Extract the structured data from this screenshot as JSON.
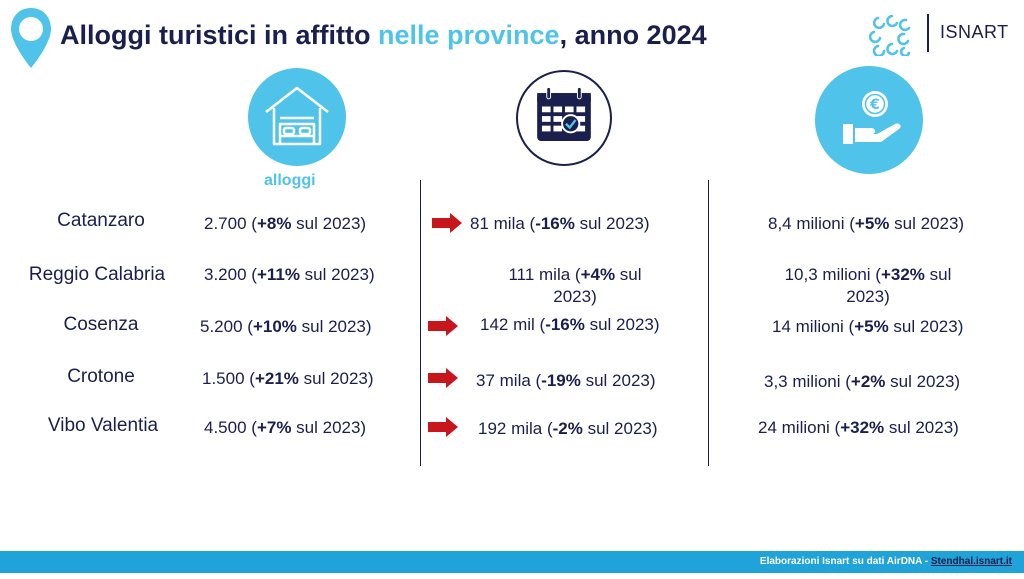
{
  "header": {
    "title_part1": "Alloggi turistici in affitto ",
    "title_accent": "nelle province",
    "title_part2": ", anno 2024",
    "logo_text": "ISNART"
  },
  "icons": {
    "pin": "location-pin-icon",
    "logo": "isnart-logo-icon",
    "col1": "house-bed-icon",
    "col2": "calendar-check-icon",
    "col3": "hand-euro-coin-icon",
    "arrow": "red-arrow-right-icon"
  },
  "columns": {
    "col1_label": "alloggi"
  },
  "rows": [
    {
      "province": "Catanzaro",
      "c1_value": "2.700 (",
      "c1_pct": "+8%",
      "c1_tail": " sul 2023)",
      "c2_value": "81 mila (",
      "c2_pct": "-16%",
      "c2_tail": " sul 2023)",
      "c2_arrow": true,
      "c3_value": "8,4 milioni (",
      "c3_pct": "+5%",
      "c3_tail": " sul 2023)"
    },
    {
      "province": "Reggio Calabria",
      "c1_value": "3.200 (",
      "c1_pct": "+11%",
      "c1_tail": " sul 2023)",
      "c2_value": "111 mila (",
      "c2_pct": "+4%",
      "c2_tail": " sul 2023)",
      "c2_arrow": false,
      "c3_value": "10,3 milioni (",
      "c3_pct": "+32%",
      "c3_tail": " sul 2023)"
    },
    {
      "province": "Cosenza",
      "c1_value": "5.200 (",
      "c1_pct": "+10%",
      "c1_tail": " sul 2023)",
      "c2_value": "142 mil (",
      "c2_pct": "-16%",
      "c2_tail": " sul 2023)",
      "c2_arrow": true,
      "c3_value": "14 milioni (",
      "c3_pct": "+5%",
      "c3_tail": " sul 2023)"
    },
    {
      "province": "Crotone",
      "c1_value": "1.500 (",
      "c1_pct": "+21%",
      "c1_tail": " sul 2023)",
      "c2_value": "37 mila (",
      "c2_pct": "-19%",
      "c2_tail": " sul 2023)",
      "c2_arrow": true,
      "c3_value": "3,3 milioni (",
      "c3_pct": "+2%",
      "c3_tail": " sul 2023)"
    },
    {
      "province": "Vibo Valentia",
      "c1_value": "4.500 (",
      "c1_pct": "+7%",
      "c1_tail": " sul 2023)",
      "c2_value": "192 mila (",
      "c2_pct": "-2%",
      "c2_tail": " sul 2023)",
      "c2_arrow": true,
      "c3_value": "24 milioni (",
      "c3_pct": "+32%",
      "c3_tail": " sul 2023)"
    }
  ],
  "footer": {
    "text": "Elaborazioni Isnart su dati AirDNA - ",
    "link": "Stendhal.isnart.it"
  },
  "colors": {
    "navy": "#1a1f4d",
    "accent": "#4fc3ea",
    "footer_bar": "#1fa3d8",
    "arrow_red": "#c8161d"
  }
}
